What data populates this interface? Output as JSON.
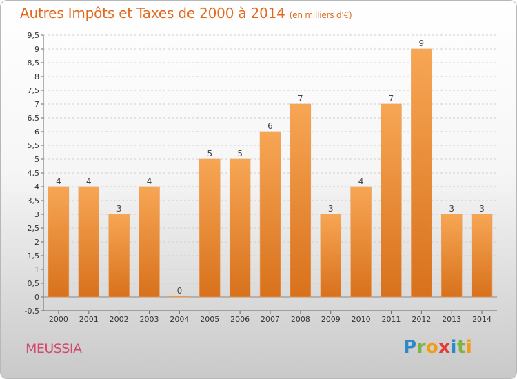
{
  "header": {
    "title": "Autres Impôts et Taxes de 2000 à 2014",
    "unit": "(en milliers d'€)"
  },
  "footer": {
    "commune": "MEUSSIA",
    "logo_letters": [
      "P",
      "r",
      "o",
      "x",
      "i",
      "t",
      "i"
    ],
    "logo_colors": [
      "#2d89c8",
      "#7cb342",
      "#f39c12",
      "#e53935",
      "#2d89c8",
      "#7cb342",
      "#f39c12"
    ]
  },
  "chart_data": {
    "type": "bar",
    "title": "Autres Impôts et Taxes de 2000 à 2014",
    "subtitle": "(en milliers d'€)",
    "categories": [
      "2000",
      "2001",
      "2002",
      "2003",
      "2004",
      "2005",
      "2006",
      "2007",
      "2008",
      "2009",
      "2010",
      "2011",
      "2012",
      "2013",
      "2014"
    ],
    "values": [
      4,
      4,
      3,
      4,
      0,
      5,
      5,
      6,
      7,
      3,
      4,
      7,
      9,
      3,
      3
    ],
    "data_labels": [
      "4",
      "4",
      "3",
      "4",
      "0",
      "5",
      "5",
      "6",
      "7",
      "3",
      "4",
      "7",
      "9",
      "3",
      "3"
    ],
    "ylim": [
      -0.5,
      9.5
    ],
    "yticks": [
      -0.5,
      0,
      0.5,
      1,
      1.5,
      2,
      2.5,
      3,
      3.5,
      4,
      4.5,
      5,
      5.5,
      6,
      6.5,
      7,
      7.5,
      8,
      8.5,
      9,
      9.5
    ],
    "ytick_labels": [
      "-0,5",
      "0",
      "0,5",
      "1",
      "1,5",
      "2",
      "2,5",
      "3",
      "3,5",
      "4",
      "4,5",
      "5",
      "5,5",
      "6",
      "6,5",
      "7",
      "7,5",
      "8",
      "8,5",
      "9",
      "9,5"
    ],
    "grid": true,
    "colors": {
      "bar_top": "#f7a654",
      "bar_bottom": "#d8711c",
      "grid": "#cfcfcf"
    }
  }
}
